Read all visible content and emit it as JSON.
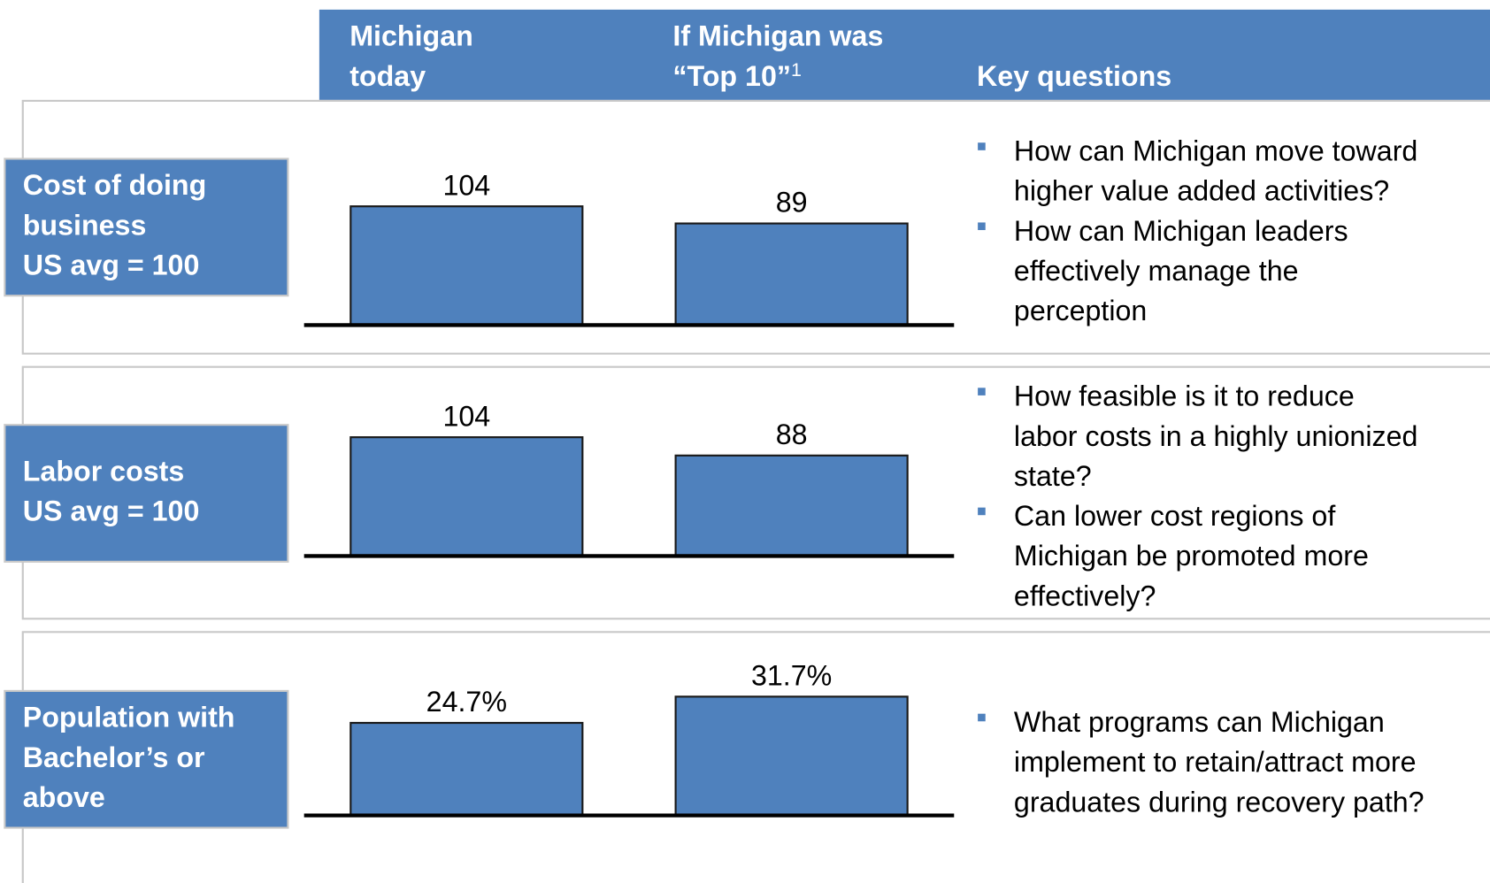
{
  "header": {
    "columns": [
      [
        "Michigan",
        "today"
      ],
      [
        "If Michigan was",
        "“Top 10”"
      ],
      [
        "Key questions"
      ]
    ],
    "footnote_mark": "1"
  },
  "chart_data": [
    {
      "type": "bar",
      "title": [
        "Cost of doing",
        "business",
        "US avg = 100"
      ],
      "values": [
        104,
        89
      ],
      "color": "#4f81bd",
      "questions": [
        [
          "How can Michigan move toward",
          "higher value added activities?"
        ],
        [
          "How can Michigan leaders",
          "effectively manage the",
          "perception"
        ]
      ]
    },
    {
      "type": "bar",
      "title": [
        "Labor costs",
        "US avg = 100"
      ],
      "values": [
        104,
        88
      ],
      "color": "#4f81bd",
      "questions": [
        [
          "How feasible is it to reduce",
          "labor costs in a highly unionized",
          "state?"
        ],
        [
          "Can lower cost regions of",
          "Michigan be promoted more",
          "effectively?"
        ]
      ]
    },
    {
      "type": "bar",
      "title": [
        "Population with",
        "Bachelor’s or",
        "above"
      ],
      "values": [
        24.7,
        31.7
      ],
      "value_labels": [
        "24.7%",
        "31.7%"
      ],
      "color": "#4f81bd",
      "questions": [
        [
          "What programs can Michigan",
          "implement to retain/attract more",
          "graduates during recovery path?"
        ]
      ]
    }
  ]
}
